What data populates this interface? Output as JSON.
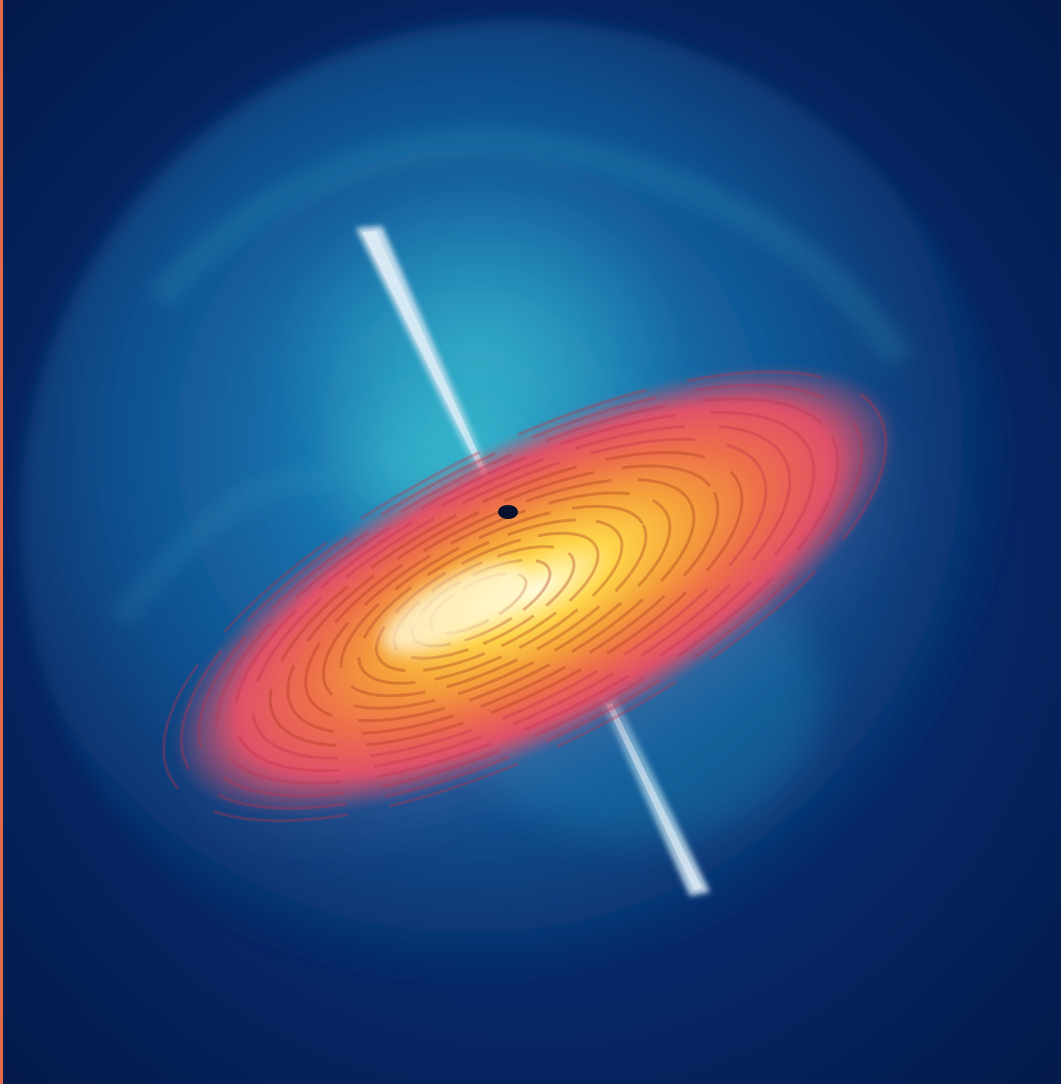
{
  "scene": {
    "subject": "black-hole-accretion-disk",
    "elements": [
      "background-space",
      "gas-halo",
      "accretion-disk",
      "black-hole",
      "upper-jet",
      "lower-jet"
    ]
  },
  "colors": {
    "background": "#031a4a",
    "halo_inner": "#1a7fb8",
    "halo_mid": "#14609e",
    "halo_outer": "#0a2f6e",
    "disk_outer": "#e0506a",
    "disk_mid": "#f28a3c",
    "disk_inner": "#ffd54a",
    "disk_core": "#fff6cf",
    "black_hole": "#06122e",
    "jet": "#cfe4f2",
    "left_edge": "#e06a4a"
  }
}
